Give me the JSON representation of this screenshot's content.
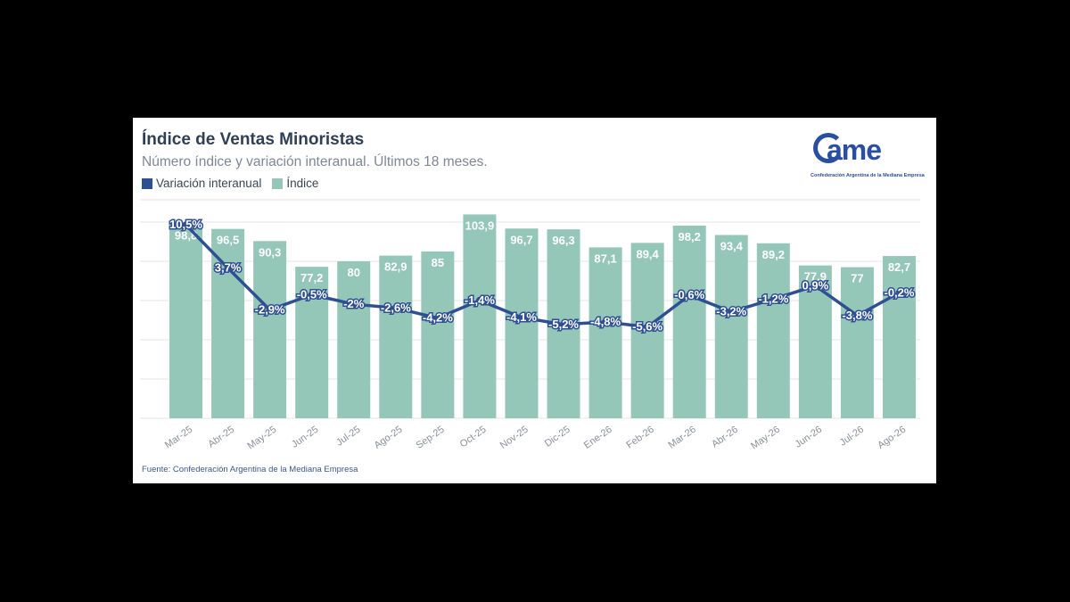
{
  "header": {
    "title": "Índice de Ventas Minoristas",
    "subtitle": "Número índice y variación interanual. Últimos 18 meses."
  },
  "legend": {
    "line_label": "Variación interanual",
    "bar_label": "Índice"
  },
  "logo": {
    "word": "ame",
    "tagline": "Confederación Argentina de la Mediana Empresa"
  },
  "footer": {
    "source": "Fuente: Confederación Argentina de la Mediana Empresa"
  },
  "colors": {
    "bar": "#95c7b8",
    "line": "#2f4f93",
    "bar_label": "#ffffff",
    "grid": "#e6e6e6",
    "axis_text": "#8a8f98"
  },
  "chart_data": {
    "type": "bar",
    "title": "Índice de Ventas Minoristas",
    "subtitle": "Número índice y variación interanual. Últimos 18 meses.",
    "categories": [
      "Mar-25",
      "Abr-25",
      "May-25",
      "Jun-25",
      "Jul-25",
      "Ago-25",
      "Sep-25",
      "Oct-25",
      "Nov-25",
      "Dic-25",
      "Ene-26",
      "Feb-26",
      "Mar-26",
      "Abr-26",
      "May-26",
      "Jun-26",
      "Jul-26",
      "Ago-26"
    ],
    "series": [
      {
        "name": "Índice",
        "type": "bar",
        "values": [
          98.8,
          96.5,
          90.3,
          77.2,
          80,
          82.9,
          85,
          103.9,
          96.7,
          96.3,
          87.1,
          89.4,
          98.2,
          93.4,
          89.2,
          77.9,
          77,
          82.7
        ],
        "labels": [
          "98,8",
          "96,5",
          "90,3",
          "77,2",
          "80",
          "82,9",
          "85",
          "103,9",
          "96,7",
          "96,3",
          "87,1",
          "89,4",
          "98,2",
          "93,4",
          "89,2",
          "77,9",
          "77",
          "82,7"
        ]
      },
      {
        "name": "Variación interanual",
        "type": "line",
        "values": [
          10.5,
          3.7,
          -2.9,
          -0.5,
          -2,
          -2.6,
          -4.2,
          -1.4,
          -4.1,
          -5.2,
          -4.8,
          -5.6,
          -0.6,
          -3.2,
          -1.2,
          0.9,
          -3.8,
          -0.2
        ],
        "labels": [
          "10,5%",
          "3,7%",
          "-2,9%",
          "-0,5%",
          "-2%",
          "-2,6%",
          "-4,2%",
          "-1,4%",
          "-4,1%",
          "-5,2%",
          "-4,8%",
          "-5,6%",
          "-0,6%",
          "-3,2%",
          "-1,2%",
          "0,9%",
          "-3,8%",
          "-0,2%"
        ]
      }
    ],
    "bar_ylim": [
      0,
      105
    ],
    "line_ylim": [
      -20,
      12.5
    ],
    "grid": true,
    "legend_position": "top-left"
  }
}
